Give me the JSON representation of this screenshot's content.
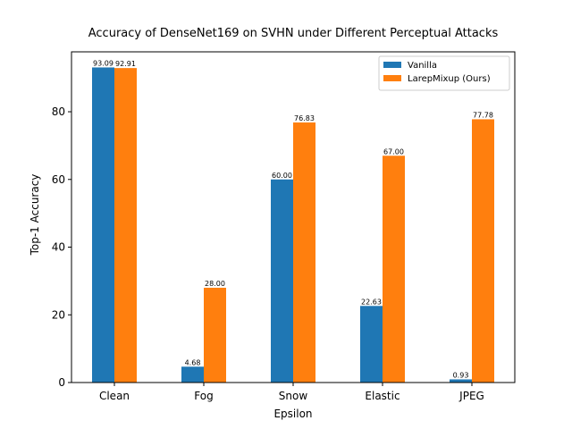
{
  "chart_data": {
    "type": "bar",
    "title": "Accuracy of DenseNet169 on SVHN under Different Perceptual Attacks",
    "xlabel": "Epsilon",
    "ylabel": "Top-1 Accuracy",
    "categories": [
      "Clean",
      "Fog",
      "Snow",
      "Elastic",
      "JPEG"
    ],
    "series": [
      {
        "name": "Vanilla",
        "color": "#1f77b4",
        "values": [
          93.09,
          4.68,
          60.0,
          22.63,
          0.93
        ],
        "labels": [
          "93.09",
          "4.68",
          "60.00",
          "22.63",
          "0.93"
        ]
      },
      {
        "name": "LarepMixup (Ours)",
        "color": "#ff7f0e",
        "values": [
          92.91,
          28.0,
          76.83,
          67.0,
          77.78
        ],
        "labels": [
          "92.91",
          "28.00",
          "76.83",
          "67.00",
          "77.78"
        ]
      }
    ],
    "ylim": [
      0,
      97.7
    ],
    "yticks": [
      0,
      20,
      40,
      60,
      80
    ],
    "ytick_labels": [
      "0",
      "20",
      "40",
      "60",
      "80"
    ],
    "legend_position": "top-right",
    "grid": false
  }
}
